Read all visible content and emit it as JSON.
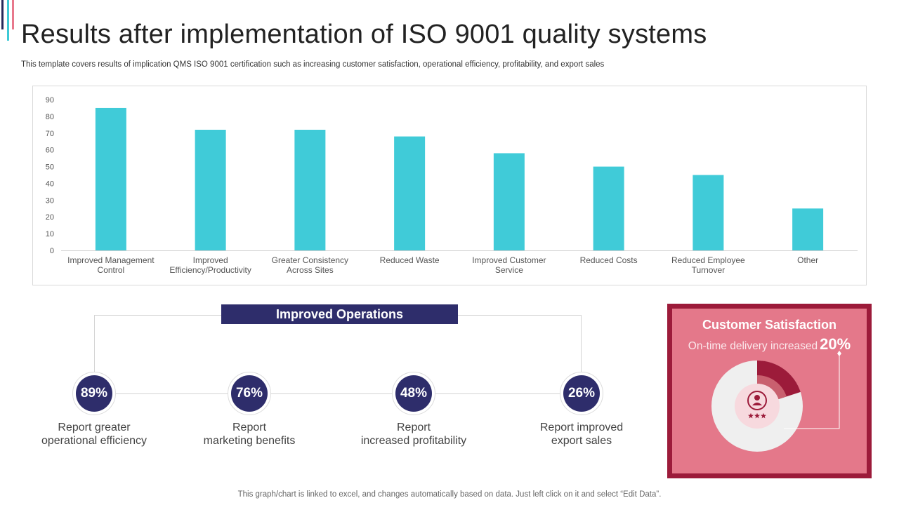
{
  "header": {
    "title": "Results after implementation of ISO 9001 quality systems",
    "subtitle": "This template covers results of implication QMS ISO 9001 certification such as increasing customer satisfaction, operational efficiency, profitability, and export sales"
  },
  "chart_data": {
    "type": "bar",
    "title": "",
    "xlabel": "",
    "ylabel": "",
    "ylim": [
      0,
      90
    ],
    "yticks": [
      0,
      10,
      20,
      30,
      40,
      50,
      60,
      70,
      80,
      90
    ],
    "categories": [
      [
        "Improved Management",
        "Control"
      ],
      [
        "Improved",
        "Efficiency/Productivity"
      ],
      [
        "Greater Consistency",
        "Across Sites"
      ],
      [
        "Reduced Waste"
      ],
      [
        "Improved Customer",
        "Service"
      ],
      [
        "Reduced Costs"
      ],
      [
        "Reduced Employee",
        "Turnover"
      ],
      [
        "Other"
      ]
    ],
    "values": [
      85,
      72,
      72,
      68,
      58,
      50,
      45,
      25
    ],
    "color": "#40cbd8",
    "grid": false,
    "legend": "none"
  },
  "operations": {
    "title": "Improved Operations",
    "stats": [
      {
        "value": "89%",
        "label_line1": "Report greater",
        "label_line2": "operational efficiency"
      },
      {
        "value": "76%",
        "label_line1": "Report",
        "label_line2": "marketing benefits"
      },
      {
        "value": "48%",
        "label_line1": "Report",
        "label_line2": "increased profitability"
      },
      {
        "value": "26%",
        "label_line1": "Report improved",
        "label_line2": "export sales"
      }
    ]
  },
  "customer_satisfaction": {
    "title": "Customer Satisfaction",
    "subtitle": "On-time delivery increased",
    "percent": "20%",
    "fraction": 0.2,
    "colors": {
      "panel": "#e4788a",
      "border": "#9c1b3a",
      "highlight": "#9c1b3a"
    }
  },
  "footer": {
    "note": "This graph/chart is linked to excel,  and changes automatically based on data. Just left click on it and select “Edit Data”."
  }
}
